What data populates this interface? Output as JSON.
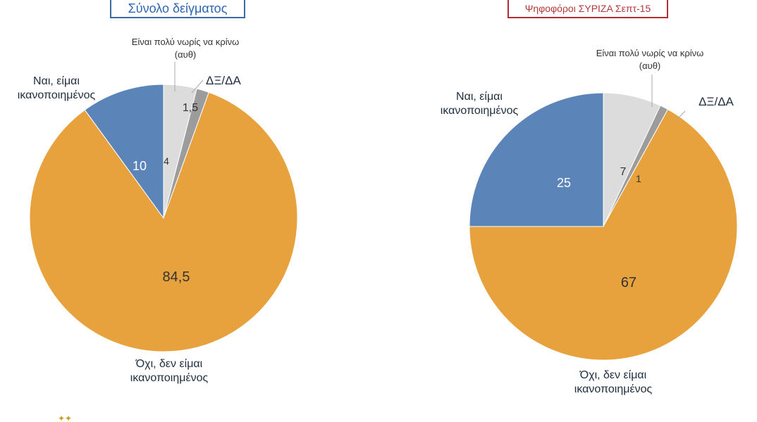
{
  "colors": {
    "yes": "#5b84b8",
    "no": "#e8a23d",
    "early": "#dcdcdc",
    "dk": "#9c9c9c",
    "title_left": "#2f66b2",
    "title_right": "#b23a3a"
  },
  "labels": {
    "yes_line1": "Ναι, είμαι",
    "yes_line2": "ικανοποιημένος",
    "no_line1": "Όχι, δεν είμαι",
    "no_line2": "ικανοποιημένος",
    "early_line1": "Είναι πολύ νωρίς να κρίνω",
    "early_line2": "(αυθ)",
    "dk": "ΔΞ/ΔΑ"
  },
  "chart_data": [
    {
      "type": "pie",
      "title": "Σύνολο δείγματος",
      "slices": [
        {
          "key": "early",
          "label": "Είναι πολύ νωρίς να κρίνω (αυθ)",
          "value": 4,
          "value_label": "4"
        },
        {
          "key": "dk",
          "label": "ΔΞ/ΔΑ",
          "value": 1.5,
          "value_label": "1,5"
        },
        {
          "key": "no",
          "label": "Όχι, δεν είμαι ικανοποιημένος",
          "value": 84.5,
          "value_label": "84,5"
        },
        {
          "key": "yes",
          "label": "Ναι, είμαι ικανοποιημένος",
          "value": 10,
          "value_label": "10"
        }
      ]
    },
    {
      "type": "pie",
      "title": "Ψηφοφόροι ΣΥΡΙΖΑ Σεπτ-15",
      "slices": [
        {
          "key": "early",
          "label": "Είναι πολύ νωρίς να κρίνω (αυθ)",
          "value": 7,
          "value_label": "7"
        },
        {
          "key": "dk",
          "label": "ΔΞ/ΔΑ",
          "value": 1,
          "value_label": "1"
        },
        {
          "key": "no",
          "label": "Όχι, δεν είμαι ικανοποιημένος",
          "value": 67,
          "value_label": "67"
        },
        {
          "key": "yes",
          "label": "Ναι, είμαι ικανοποιημένος",
          "value": 25,
          "value_label": "25"
        }
      ]
    }
  ]
}
